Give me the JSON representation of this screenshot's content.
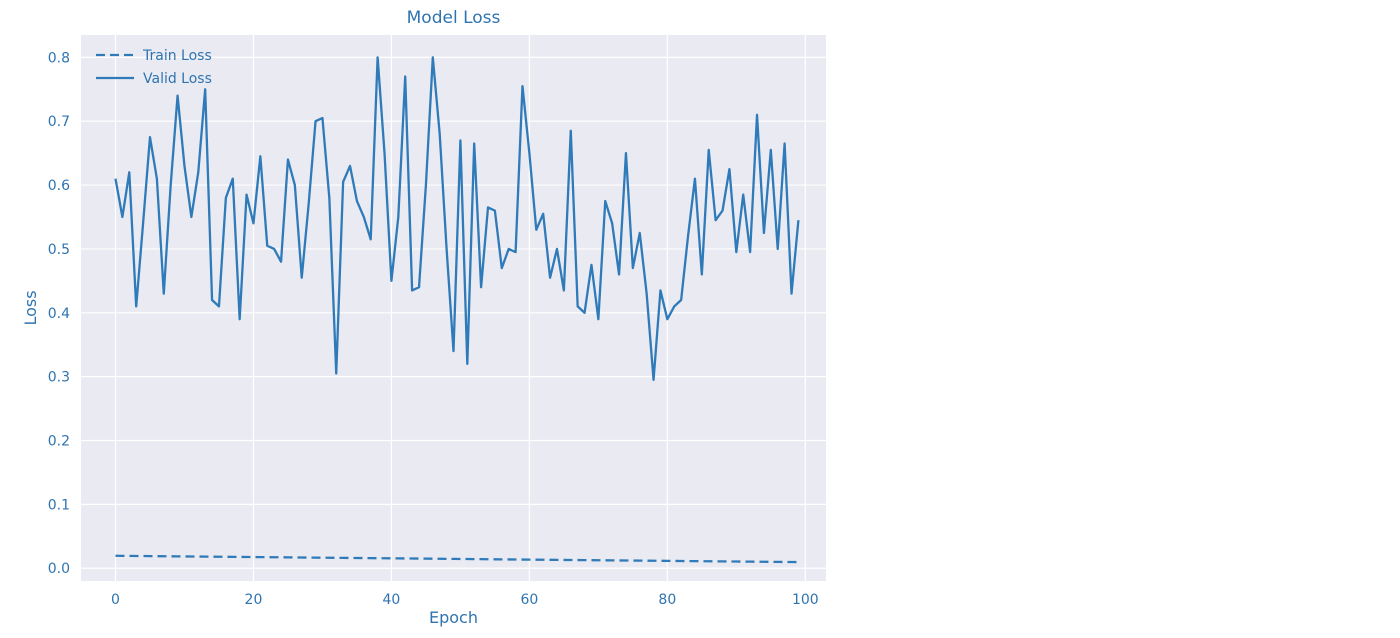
{
  "chart_data": {
    "type": "line",
    "title": "Model Loss",
    "xlabel": "Epoch",
    "ylabel": "Loss",
    "xlim": [
      -5,
      103
    ],
    "ylim": [
      -0.02,
      0.835
    ],
    "xticks": [
      0,
      20,
      40,
      60,
      80,
      100
    ],
    "yticks": [
      0.0,
      0.1,
      0.2,
      0.3,
      0.4,
      0.5,
      0.6,
      0.7,
      0.8
    ],
    "xtick_labels": [
      "0",
      "20",
      "40",
      "60",
      "80",
      "100"
    ],
    "ytick_labels": [
      "0.0",
      "0.1",
      "0.2",
      "0.3",
      "0.4",
      "0.5",
      "0.6",
      "0.7",
      "0.8"
    ],
    "grid": true,
    "legend_position": "top-left",
    "colors": {
      "line": "#2f7ab8",
      "text": "#2f74b0",
      "plot_bg": "#eaeaf2",
      "grid": "#ffffff"
    },
    "series": [
      {
        "name": "Train Loss",
        "style": "dashed",
        "values": [
          0.0195,
          0.0194,
          0.0193,
          0.0192,
          0.0191,
          0.019,
          0.0189,
          0.0188,
          0.0187,
          0.0186,
          0.0185,
          0.0184,
          0.0183,
          0.0182,
          0.0181,
          0.018,
          0.0179,
          0.0178,
          0.0177,
          0.0176,
          0.0175,
          0.0174,
          0.0173,
          0.0172,
          0.0171,
          0.017,
          0.0169,
          0.0168,
          0.0167,
          0.0166,
          0.0165,
          0.0164,
          0.0163,
          0.0162,
          0.0161,
          0.016,
          0.0159,
          0.0158,
          0.0157,
          0.0156,
          0.0155,
          0.0154,
          0.0153,
          0.0152,
          0.0151,
          0.015,
          0.0149,
          0.0148,
          0.0147,
          0.0146,
          0.0145,
          0.0144,
          0.0143,
          0.0142,
          0.0141,
          0.014,
          0.0139,
          0.0138,
          0.0137,
          0.0136,
          0.0135,
          0.0134,
          0.0133,
          0.0132,
          0.0131,
          0.013,
          0.0129,
          0.0128,
          0.0127,
          0.0126,
          0.0125,
          0.0124,
          0.0123,
          0.0122,
          0.0121,
          0.012,
          0.0119,
          0.0118,
          0.0117,
          0.0116,
          0.0115,
          0.0114,
          0.0113,
          0.0112,
          0.0111,
          0.011,
          0.0109,
          0.0108,
          0.0107,
          0.0106,
          0.0105,
          0.0104,
          0.0103,
          0.0102,
          0.0101,
          0.01,
          0.0099,
          0.0098,
          0.0097,
          0.0096
        ]
      },
      {
        "name": "Valid Loss",
        "style": "solid",
        "values": [
          0.61,
          0.55,
          0.62,
          0.41,
          0.54,
          0.675,
          0.61,
          0.43,
          0.6,
          0.74,
          0.63,
          0.55,
          0.62,
          0.75,
          0.42,
          0.41,
          0.58,
          0.61,
          0.39,
          0.585,
          0.54,
          0.645,
          0.505,
          0.5,
          0.48,
          0.64,
          0.6,
          0.455,
          0.57,
          0.7,
          0.705,
          0.58,
          0.305,
          0.605,
          0.63,
          0.575,
          0.55,
          0.515,
          0.8,
          0.65,
          0.45,
          0.55,
          0.77,
          0.435,
          0.44,
          0.6,
          0.8,
          0.68,
          0.5,
          0.34,
          0.67,
          0.32,
          0.665,
          0.44,
          0.565,
          0.56,
          0.47,
          0.5,
          0.495,
          0.755,
          0.65,
          0.53,
          0.555,
          0.455,
          0.5,
          0.435,
          0.685,
          0.41,
          0.4,
          0.475,
          0.39,
          0.575,
          0.54,
          0.46,
          0.65,
          0.47,
          0.525,
          0.43,
          0.295,
          0.435,
          0.39,
          0.41,
          0.42,
          0.52,
          0.61,
          0.46,
          0.655,
          0.545,
          0.56,
          0.625,
          0.495,
          0.585,
          0.495,
          0.71,
          0.525,
          0.655,
          0.5,
          0.665,
          0.43,
          0.545
        ]
      }
    ]
  }
}
